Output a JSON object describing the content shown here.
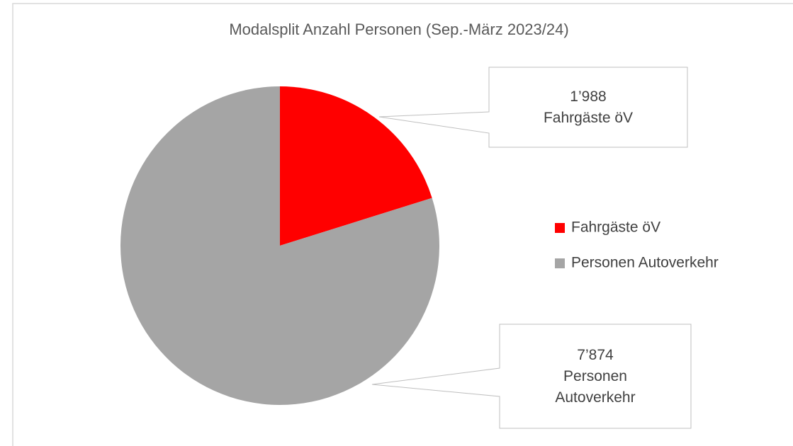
{
  "chart_data": {
    "type": "pie",
    "title": "Modalsplit Anzahl Personen (Sep.-März 2023/24)",
    "categories": [
      "Fahrgäste öV",
      "Personen Autoverkehr"
    ],
    "values": [
      1988,
      7874
    ],
    "value_labels": [
      "1’988",
      "7’874"
    ],
    "colors": [
      "#ff0000",
      "#a5a5a5"
    ],
    "legend": "right"
  }
}
